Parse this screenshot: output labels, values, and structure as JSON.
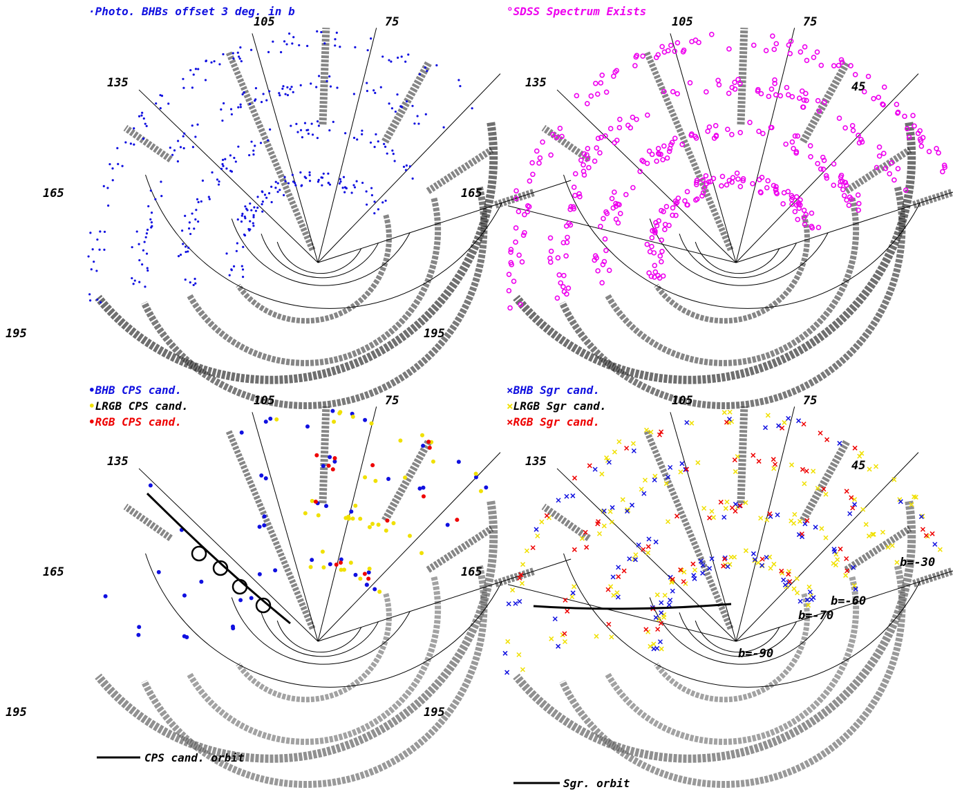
{
  "figure": {
    "panels": [
      {
        "id": "top-left",
        "legend": [
          {
            "marker": "·",
            "text": "Photo. BHBs offset 3 deg. in b",
            "color": "#1010e0"
          }
        ],
        "angle_labels": {
          "a105": "105",
          "a75": "75",
          "a135": "135",
          "a165": "165",
          "a195": "195"
        }
      },
      {
        "id": "top-right",
        "legend": [
          {
            "marker": "°",
            "text": "SDSS Spectrum Exists",
            "color": "#ee00ee"
          }
        ],
        "angle_labels": {
          "a105": "105",
          "a75": "75",
          "a135": "135",
          "a45": "45",
          "a165": "165",
          "a195": "195"
        }
      },
      {
        "id": "bottom-left",
        "legend": [
          {
            "marker": "•",
            "text": "BHB CPS cand.",
            "color": "#1010e0"
          },
          {
            "marker": "•",
            "text": "LRGB CPS cand.",
            "color": "#000000",
            "marker_color": "#f0e000"
          },
          {
            "marker": "•",
            "text": "RGB CPS cand.",
            "color": "#ee0000"
          }
        ],
        "angle_labels": {
          "a105": "105",
          "a75": "75",
          "a135": "135",
          "a165": "165",
          "a195": "195"
        },
        "orbit_label": "CPS cand. orbit"
      },
      {
        "id": "bottom-right",
        "legend": [
          {
            "marker": "×",
            "text": "BHB Sgr cand.",
            "color": "#1010e0"
          },
          {
            "marker": "×",
            "text": "LRGB Sgr cand.",
            "color": "#000000",
            "marker_color": "#f0e000"
          },
          {
            "marker": "×",
            "text": "RGB Sgr cand.",
            "color": "#ee0000"
          }
        ],
        "angle_labels": {
          "a105": "105",
          "a75": "75",
          "a135": "135",
          "a45": "45",
          "a165": "165",
          "a195": "195"
        },
        "b_labels": {
          "b30": "b=-30",
          "b60": "b=-60",
          "b70": "b=-70",
          "b90": "b=-90"
        },
        "orbit_label": "Sgr. orbit"
      }
    ],
    "colors": {
      "blue": "#1010e0",
      "magenta": "#ee00ee",
      "yellow": "#f0e000",
      "red": "#ee0000"
    }
  },
  "chart_data": [
    {
      "type": "scatter",
      "panel": "top-left",
      "projection": "polar (galactic l, b)",
      "angle_ticks": [
        195,
        165,
        135,
        105,
        75
      ],
      "radial_ticks": [
        -90,
        -70,
        -60,
        -30
      ],
      "series": [
        {
          "name": "Photo. BHBs offset 3 deg. in b"
        }
      ]
    },
    {
      "type": "scatter",
      "panel": "top-right",
      "projection": "polar (galactic l, b)",
      "angle_ticks": [
        195,
        165,
        135,
        105,
        75,
        45
      ],
      "radial_ticks": [
        -90,
        -70,
        -60,
        -30
      ],
      "series": [
        {
          "name": "SDSS Spectrum Exists"
        }
      ]
    },
    {
      "type": "scatter",
      "panel": "bottom-left",
      "projection": "polar (galactic l, b)",
      "angle_ticks": [
        195,
        165,
        135,
        105,
        75
      ],
      "radial_ticks": [
        -90,
        -70,
        -60,
        -30
      ],
      "series": [
        {
          "name": "BHB CPS cand."
        },
        {
          "name": "LRGB CPS cand."
        },
        {
          "name": "RGB CPS cand."
        },
        {
          "name": "CPS cand. orbit"
        }
      ]
    },
    {
      "type": "scatter",
      "panel": "bottom-right",
      "projection": "polar (galactic l, b)",
      "angle_ticks": [
        195,
        165,
        135,
        105,
        75,
        45
      ],
      "radial_ticks": [
        -90,
        -70,
        -60,
        -30
      ],
      "series": [
        {
          "name": "BHB Sgr cand."
        },
        {
          "name": "LRGB Sgr cand."
        },
        {
          "name": "RGB Sgr cand."
        },
        {
          "name": "Sgr. orbit"
        }
      ]
    }
  ]
}
